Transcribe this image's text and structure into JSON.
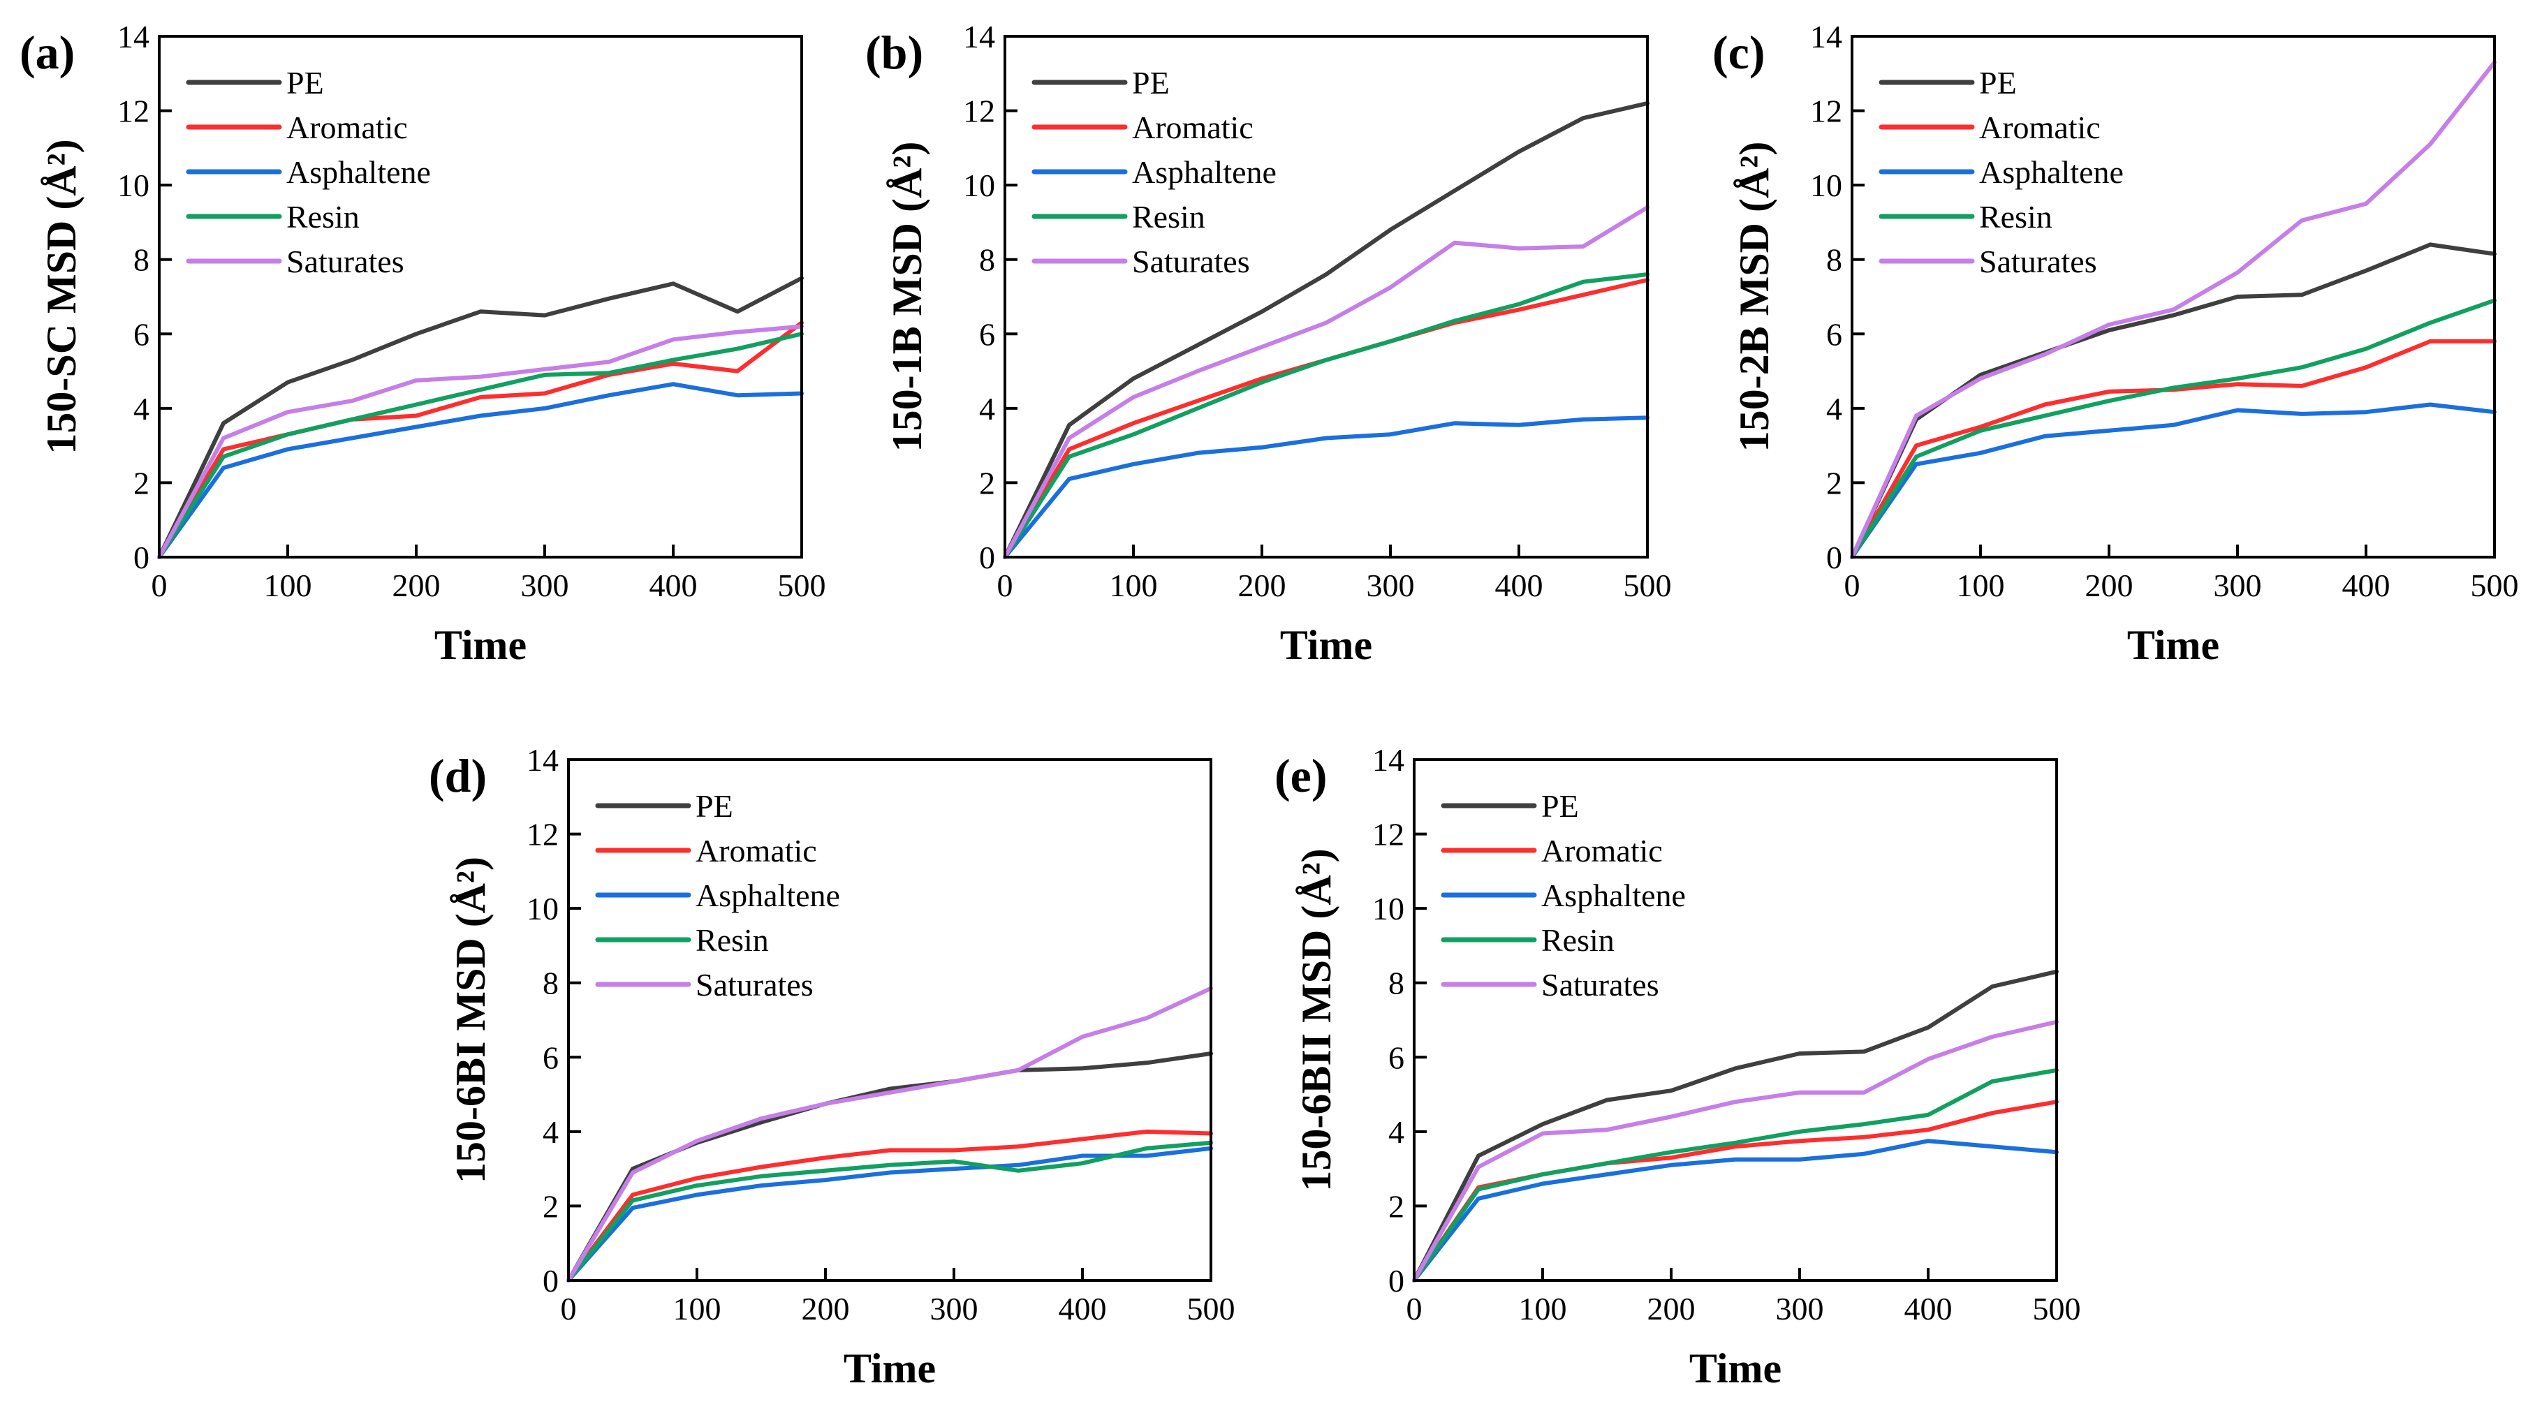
{
  "chart_data": [
    {
      "type": "line",
      "label": "(a)",
      "ylabel": "150-SC MSD (Å²)",
      "xlabel": "Time",
      "xlim": [
        0,
        500
      ],
      "ylim": [
        0,
        14
      ],
      "xticks": [
        "0",
        "100",
        "200",
        "300",
        "400",
        "500"
      ],
      "yticks": [
        "0",
        "2",
        "4",
        "6",
        "8",
        "10",
        "12",
        "14"
      ],
      "x": [
        0,
        50,
        100,
        150,
        200,
        250,
        300,
        350,
        400,
        450,
        500
      ],
      "legend_position": "top-left",
      "series": [
        {
          "name": "PE",
          "color": "#3f3f3f",
          "values": [
            0,
            3.6,
            4.7,
            5.3,
            6.0,
            6.6,
            6.5,
            6.95,
            7.35,
            6.6,
            7.5
          ]
        },
        {
          "name": "Aromatic",
          "color": "#ff2d2d",
          "values": [
            0,
            2.9,
            3.3,
            3.7,
            3.8,
            4.3,
            4.4,
            4.9,
            5.2,
            5.0,
            6.3
          ]
        },
        {
          "name": "Asphaltene",
          "color": "#1a6fdf",
          "values": [
            0,
            2.4,
            2.9,
            3.2,
            3.5,
            3.8,
            4.0,
            4.35,
            4.65,
            4.35,
            4.4
          ]
        },
        {
          "name": "Resin",
          "color": "#10a060",
          "values": [
            0,
            2.7,
            3.3,
            3.7,
            4.1,
            4.5,
            4.9,
            4.95,
            5.3,
            5.6,
            6.0
          ]
        },
        {
          "name": "Saturates",
          "color": "#c67ee8",
          "values": [
            0,
            3.2,
            3.9,
            4.2,
            4.75,
            4.85,
            5.05,
            5.25,
            5.85,
            6.05,
            6.2
          ]
        }
      ]
    },
    {
      "type": "line",
      "label": "(b)",
      "ylabel": "150-1B MSD (Å²)",
      "xlabel": "Time",
      "xlim": [
        0,
        500
      ],
      "ylim": [
        0,
        14
      ],
      "xticks": [
        "0",
        "100",
        "200",
        "300",
        "400",
        "500"
      ],
      "yticks": [
        "0",
        "2",
        "4",
        "6",
        "8",
        "10",
        "12",
        "14"
      ],
      "x": [
        0,
        50,
        100,
        150,
        200,
        250,
        300,
        350,
        400,
        450,
        500
      ],
      "legend_position": "top-left",
      "series": [
        {
          "name": "PE",
          "color": "#3f3f3f",
          "values": [
            0,
            3.55,
            4.8,
            5.7,
            6.6,
            7.6,
            8.8,
            9.85,
            10.9,
            11.8,
            12.2
          ]
        },
        {
          "name": "Aromatic",
          "color": "#ff2d2d",
          "values": [
            0,
            2.9,
            3.6,
            4.2,
            4.8,
            5.3,
            5.8,
            6.3,
            6.65,
            7.05,
            7.45
          ]
        },
        {
          "name": "Asphaltene",
          "color": "#1a6fdf",
          "values": [
            0,
            2.1,
            2.5,
            2.8,
            2.95,
            3.2,
            3.3,
            3.6,
            3.55,
            3.7,
            3.75
          ]
        },
        {
          "name": "Resin",
          "color": "#10a060",
          "values": [
            0,
            2.7,
            3.3,
            4.0,
            4.7,
            5.3,
            5.8,
            6.35,
            6.8,
            7.4,
            7.6
          ]
        },
        {
          "name": "Saturates",
          "color": "#c67ee8",
          "values": [
            0,
            3.2,
            4.3,
            5.0,
            5.65,
            6.3,
            7.25,
            8.45,
            8.3,
            8.35,
            9.4
          ]
        }
      ]
    },
    {
      "type": "line",
      "label": "(c)",
      "ylabel": "150-2B MSD (Å²)",
      "xlabel": "Time",
      "xlim": [
        0,
        500
      ],
      "ylim": [
        0,
        14
      ],
      "xticks": [
        "0",
        "100",
        "200",
        "300",
        "400",
        "500"
      ],
      "yticks": [
        "0",
        "2",
        "4",
        "6",
        "8",
        "10",
        "12",
        "14"
      ],
      "x": [
        0,
        50,
        100,
        150,
        200,
        250,
        300,
        350,
        400,
        450,
        500
      ],
      "legend_position": "top-left",
      "series": [
        {
          "name": "PE",
          "color": "#3f3f3f",
          "values": [
            0,
            3.7,
            4.9,
            5.5,
            6.1,
            6.5,
            7.0,
            7.05,
            7.7,
            8.4,
            8.15
          ]
        },
        {
          "name": "Aromatic",
          "color": "#ff2d2d",
          "values": [
            0,
            3.0,
            3.5,
            4.1,
            4.45,
            4.5,
            4.65,
            4.6,
            5.1,
            5.8,
            5.8
          ]
        },
        {
          "name": "Asphaltene",
          "color": "#1a6fdf",
          "values": [
            0,
            2.5,
            2.8,
            3.25,
            3.4,
            3.55,
            3.95,
            3.85,
            3.9,
            4.1,
            3.9
          ]
        },
        {
          "name": "Resin",
          "color": "#10a060",
          "values": [
            0,
            2.7,
            3.4,
            3.8,
            4.2,
            4.55,
            4.8,
            5.1,
            5.6,
            6.3,
            6.9
          ]
        },
        {
          "name": "Saturates",
          "color": "#c67ee8",
          "values": [
            0,
            3.8,
            4.8,
            5.45,
            6.25,
            6.65,
            7.65,
            9.05,
            9.5,
            11.1,
            13.3
          ]
        }
      ]
    },
    {
      "type": "line",
      "label": "(d)",
      "ylabel": "150-6BI MSD (Å²)",
      "xlabel": "Time",
      "xlim": [
        0,
        500
      ],
      "ylim": [
        0,
        14
      ],
      "xticks": [
        "0",
        "100",
        "200",
        "300",
        "400",
        "500"
      ],
      "yticks": [
        "0",
        "2",
        "4",
        "6",
        "8",
        "10",
        "12",
        "14"
      ],
      "x": [
        0,
        50,
        100,
        150,
        200,
        250,
        300,
        350,
        400,
        450,
        500
      ],
      "legend_position": "top-left",
      "series": [
        {
          "name": "PE",
          "color": "#3f3f3f",
          "values": [
            0,
            3.0,
            3.7,
            4.25,
            4.75,
            5.15,
            5.35,
            5.65,
            5.7,
            5.85,
            6.1
          ]
        },
        {
          "name": "Aromatic",
          "color": "#ff2d2d",
          "values": [
            0,
            2.3,
            2.75,
            3.05,
            3.3,
            3.5,
            3.5,
            3.6,
            3.8,
            4.0,
            3.95
          ]
        },
        {
          "name": "Asphaltene",
          "color": "#1a6fdf",
          "values": [
            0,
            1.95,
            2.3,
            2.55,
            2.7,
            2.9,
            3.0,
            3.1,
            3.35,
            3.35,
            3.55
          ]
        },
        {
          "name": "Resin",
          "color": "#10a060",
          "values": [
            0,
            2.15,
            2.55,
            2.8,
            2.95,
            3.1,
            3.2,
            2.95,
            3.15,
            3.55,
            3.7
          ]
        },
        {
          "name": "Saturates",
          "color": "#c67ee8",
          "values": [
            0,
            2.9,
            3.75,
            4.35,
            4.75,
            5.05,
            5.35,
            5.65,
            6.55,
            7.05,
            7.85
          ]
        }
      ]
    },
    {
      "type": "line",
      "label": "(e)",
      "ylabel": "150-6BII MSD (Å²)",
      "xlabel": "Time",
      "xlim": [
        0,
        500
      ],
      "ylim": [
        0,
        14
      ],
      "xticks": [
        "0",
        "100",
        "200",
        "300",
        "400",
        "500"
      ],
      "yticks": [
        "0",
        "2",
        "4",
        "6",
        "8",
        "10",
        "12",
        "14"
      ],
      "x": [
        0,
        50,
        100,
        150,
        200,
        250,
        300,
        350,
        400,
        450,
        500
      ],
      "legend_position": "top-left",
      "series": [
        {
          "name": "PE",
          "color": "#3f3f3f",
          "values": [
            0,
            3.35,
            4.2,
            4.85,
            5.1,
            5.7,
            6.1,
            6.15,
            6.8,
            7.9,
            8.3
          ]
        },
        {
          "name": "Aromatic",
          "color": "#ff2d2d",
          "values": [
            0,
            2.5,
            2.85,
            3.15,
            3.3,
            3.6,
            3.75,
            3.85,
            4.05,
            4.5,
            4.8
          ]
        },
        {
          "name": "Asphaltene",
          "color": "#1a6fdf",
          "values": [
            0,
            2.2,
            2.6,
            2.85,
            3.1,
            3.25,
            3.25,
            3.4,
            3.75,
            3.6,
            3.45
          ]
        },
        {
          "name": "Resin",
          "color": "#10a060",
          "values": [
            0,
            2.45,
            2.85,
            3.15,
            3.45,
            3.7,
            4.0,
            4.2,
            4.45,
            5.35,
            5.65
          ]
        },
        {
          "name": "Saturates",
          "color": "#c67ee8",
          "values": [
            0,
            3.05,
            3.95,
            4.05,
            4.4,
            4.8,
            5.05,
            5.05,
            5.95,
            6.55,
            6.95
          ]
        }
      ]
    }
  ]
}
